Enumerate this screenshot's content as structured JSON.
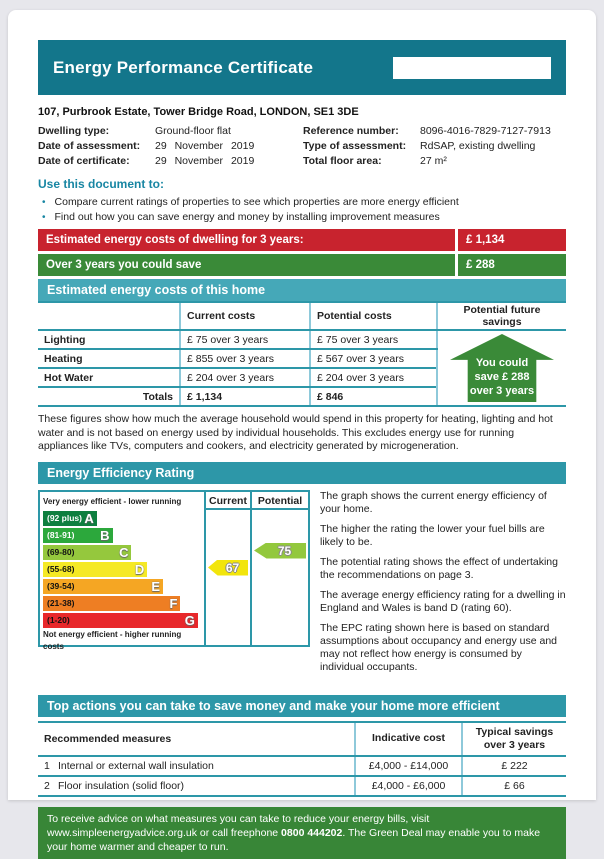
{
  "colors": {
    "teal_dark": "#13768b",
    "teal_section": "#2d97a8",
    "teal_section_light": "#45a8b8",
    "divider_blue": "#8ec9da",
    "red": "#c8232e",
    "green": "#3a8a38",
    "footer_green": "#388637",
    "heading_teal_text": "#1886a3"
  },
  "header": {
    "title": "Energy Performance Certificate"
  },
  "address": "107, Purbrook Estate, Tower Bridge Road, LONDON, SE1 3DE",
  "details": {
    "left": [
      {
        "label": "Dwelling type:",
        "value": "Ground-floor flat"
      },
      {
        "label": "Date of assessment:",
        "value": "29 November 2019"
      },
      {
        "label": "Date of certificate:",
        "value": "29 November 2019"
      }
    ],
    "right": [
      {
        "label": "Reference number:",
        "value": "8096-4016-7829-7127-7913"
      },
      {
        "label": "Type of assessment:",
        "value": "RdSAP, existing dwelling"
      },
      {
        "label": "Total floor area:",
        "value": "27 m²"
      }
    ]
  },
  "use_document": {
    "heading": "Use this document to:",
    "bullets": [
      "Compare current ratings of properties to see which properties are more energy efficient",
      "Find out how you can save energy and money by installing improvement measures"
    ]
  },
  "banners": [
    {
      "label": "Estimated energy costs of dwelling for 3 years:",
      "value": "£ 1,134",
      "color": "#c8232e"
    },
    {
      "label": "Over 3 years you could save",
      "value": "£ 288",
      "color": "#3a8a38"
    }
  ],
  "costs_section": {
    "heading": "Estimated energy costs of this home",
    "table": {
      "headers": [
        "",
        "Current costs",
        "Potential costs",
        "Potential future savings"
      ],
      "rows": [
        {
          "label": "Lighting",
          "current": "£ 75 over 3 years",
          "potential": "£ 75 over 3 years"
        },
        {
          "label": "Heating",
          "current": "£ 855 over 3 years",
          "potential": "£ 567 over 3 years"
        },
        {
          "label": "Hot Water",
          "current": "£ 204 over 3 years",
          "potential": "£ 204 over 3 years"
        }
      ],
      "totals": {
        "label": "Totals",
        "current": "£ 1,134",
        "potential": "£ 846"
      }
    },
    "savings_badge": "You could save £ 288 over 3 years",
    "note": "These figures show how much the average household would spend in this property for heating, lighting and hot water and is not based on energy used by individual households. This excludes energy use for running appliances like TVs, computers and cookers, and electricity generated by microgeneration."
  },
  "rating_section": {
    "heading": "Energy Efficiency Rating",
    "chart": {
      "type": "epc-rating-bands",
      "columns": [
        "Current",
        "Potential"
      ],
      "top_label": "Very energy efficient - lower running costs",
      "bottom_label": "Not energy efficient - higher running costs",
      "bands": [
        {
          "letter": "A",
          "range": "(92 plus)",
          "color": "#0e7f3f",
          "width_pct": 34,
          "light_text": true
        },
        {
          "letter": "B",
          "range": "(81-91)",
          "color": "#2ca83c",
          "width_pct": 44,
          "light_text": true
        },
        {
          "letter": "C",
          "range": "(69-80)",
          "color": "#95c83d",
          "width_pct": 56,
          "light_text": false
        },
        {
          "letter": "D",
          "range": "(55-68)",
          "color": "#f5e926",
          "width_pct": 66,
          "light_text": false
        },
        {
          "letter": "E",
          "range": "(39-54)",
          "color": "#f5a623",
          "width_pct": 76,
          "light_text": false
        },
        {
          "letter": "F",
          "range": "(21-38)",
          "color": "#ee7e23",
          "width_pct": 87,
          "light_text": false
        },
        {
          "letter": "G",
          "range": "(1-20)",
          "color": "#e8282b",
          "width_pct": 98,
          "light_text": false
        }
      ],
      "current": {
        "value": "67",
        "band": "D",
        "band_index": 3,
        "color": "#f2e50c"
      },
      "potential": {
        "value": "75",
        "band": "C",
        "band_index": 2,
        "color": "#93c83d"
      }
    },
    "paragraphs": [
      "The graph shows the current energy efficiency of your home.",
      "The higher the rating the lower your fuel bills are likely to be.",
      "The potential rating shows the effect of undertaking the recommendations on page 3.",
      "The average energy efficiency rating for a dwelling in England and Wales is band D (rating 60).",
      "The EPC rating shown here is based on standard assumptions about occupancy and energy use and may not reflect how energy is consumed by individual occupants."
    ]
  },
  "actions_section": {
    "heading": "Top actions you can take to save money and make your home more efficient",
    "headers": [
      "Recommended measures",
      "Indicative cost",
      "Typical savings over 3 years"
    ],
    "rows": [
      {
        "number": "1",
        "measure": "Internal or external wall insulation",
        "cost": "£4,000 - £14,000",
        "savings": "£ 222"
      },
      {
        "number": "2",
        "measure": "Floor insulation (solid floor)",
        "cost": "£4,000 - £6,000",
        "savings": "£ 66"
      }
    ]
  },
  "footer": {
    "text_before": "To receive advice on what measures you can take to reduce your energy bills, visit www.simpleenergyadvice.org.uk or call freephone ",
    "phone": "0800 444202",
    "text_after": ". The Green Deal may enable you to make your home warmer and cheaper to run."
  }
}
